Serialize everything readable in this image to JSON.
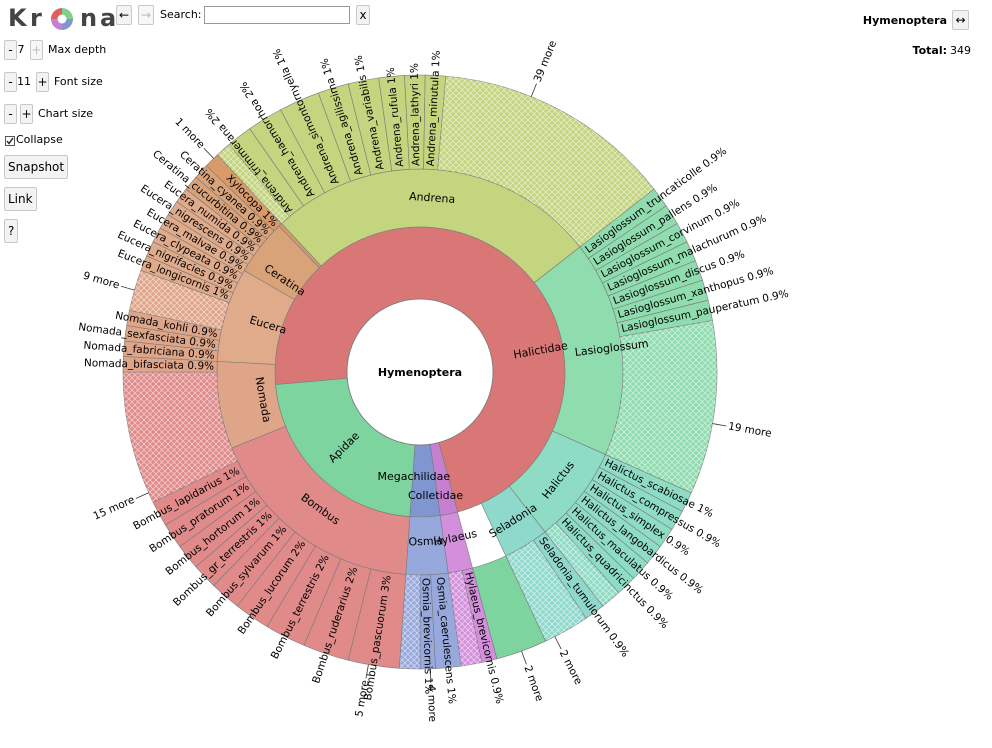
{
  "toolbar": {
    "logo": [
      "K",
      "r",
      "",
      "n",
      "a"
    ],
    "back_glyph": "←",
    "forward_glyph": "→",
    "search_label": "Search:",
    "search_value": "",
    "search_clear": "x",
    "max_depth": {
      "minus": "-",
      "value": "7",
      "plus": "+",
      "label": "Max depth"
    },
    "font_size": {
      "minus": "-",
      "value": "11",
      "plus": "+",
      "label": "Font size"
    },
    "chart_size": {
      "minus": "-",
      "plus": "+",
      "label": "Chart size"
    },
    "collapse": {
      "label": "Collapse",
      "checked": true
    },
    "snapshot_label": "Snapshot",
    "link_label": "Link",
    "help_label": "?"
  },
  "details": {
    "name": "Hymenoptera",
    "expand_glyph": "↔",
    "total_label": "Total:",
    "total_value": "349"
  },
  "chart_data": {
    "type": "sunburst",
    "root": "Hymenoptera",
    "total": 349,
    "level1": [
      {
        "name": "Apidae",
        "color": "#d97777"
      },
      {
        "name": "Colletidae",
        "color": "#c77fd0"
      },
      {
        "name": "Megachilidae",
        "color": "#7f96d0"
      },
      {
        "name": "Halictidae",
        "color": "#7dd49e"
      }
    ],
    "level2": [
      {
        "name": "Andrena",
        "parent": "Apidae",
        "color": "#c3d57e"
      },
      {
        "name": "Lasioglossum",
        "parent": "Halictidae",
        "color": "#8fdcaf"
      },
      {
        "name": "Halictus",
        "parent": "Halictidae",
        "color": "#8edcc4"
      },
      {
        "name": "Seladonia",
        "parent": "Halictidae",
        "color": "#8ed9cc"
      },
      {
        "name": "Osmia",
        "parent": "Megachilidae",
        "color": "#97a9dc"
      },
      {
        "name": "Hylaeus",
        "parent": "Colletidae",
        "color": "#d38fdc"
      },
      {
        "name": "Bombus",
        "parent": "Apidae",
        "color": "#e08a8a"
      },
      {
        "name": "Nomada",
        "parent": "Apidae",
        "color": "#dfa588"
      },
      {
        "name": "Eucera",
        "parent": "Apidae",
        "color": "#dfab8a"
      },
      {
        "name": "Ceratina",
        "parent": "Apidae",
        "color": "#d9a37a"
      },
      {
        "name": "Xylocopa",
        "parent": "Apidae",
        "color": "#d99a6a"
      }
    ],
    "species_labels": [
      "Andrena_minutula 1%",
      "Andrena_lathyri 1%",
      "Andrena_rufula 1%",
      "Andrena_variabilis 1%",
      "Andrena_agilissima 1%",
      "Andrena_simontornyella 1%",
      "Andrena_haemorrhoa 2%",
      "Andrena_trimmerana 2%",
      "39 more",
      "1 more",
      "Xylocopa 1%",
      "Ceratina_cyanea 0.9%",
      "Ceratina_cucurbitina 0.9%",
      "Eucera_numida 0.9%",
      "Eucera_nigrescens 0.9%",
      "Eucera_malvae 0.9%",
      "Eucera_clypeata 0.9%",
      "Eucera_nigrifacies 0.9%",
      "Eucera_longicornis 1%",
      "9 more",
      "Nomada_kohli 0.9%",
      "Nomada_sexfasciata 0.9%",
      "Nomada_fabriciana 0.9%",
      "Nomada_bifasciata 0.9%",
      "15 more",
      "Bombus_lapidarius 1%",
      "Bombus_pratorum 1%",
      "Bombus_hortorum 1%",
      "Bombus_gr_terrestris 1%",
      "Bombus_sylvarum 1%",
      "Bombus_lucorum 2%",
      "Bombus_terrestris 2%",
      "Bombus_ruderarius 2%",
      "Bombus_pascuorum 3%",
      "4 more",
      "Hylaeus_brevicornis 0.9%",
      "5 more",
      "Osmia_brevicornis 1%",
      "Osmia_caerulescens 1%",
      "2 more",
      "Seladonia_tumulorum 0.9%",
      "2 more",
      "Halictus_quadricinctus 0.9%",
      "Halictus_maculatus 0.9%",
      "Halictus_langobardicus 0.9%",
      "Halictus_simplex 0.9%",
      "Halictus_compressus 0.9%",
      "Halictus_scabiosae 1%",
      "19 more",
      "Lasioglossum_truncaticolle 0.9%",
      "Lasioglossum_pallens 0.9%",
      "Lasioglossum_corvinum 0.9%",
      "Lasioglossum_malachurum 0.9%",
      "Lasioglossum_discus 0.9%",
      "Lasioglossum_xanthopus 0.9%",
      "Lasioglossum_pauperatum 0.9%"
    ]
  }
}
